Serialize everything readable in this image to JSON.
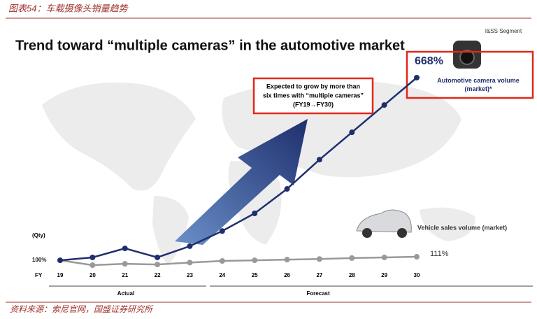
{
  "chart_data": {
    "type": "line",
    "header": "图表54：车载摄像头销量趋势",
    "title": "Trend toward “multiple cameras” in the automotive market",
    "segment_label": "I&SS Segment",
    "callout": [
      "Expected to grow by more than",
      "six times with “multiple cameras”",
      "(FY19→FY30)"
    ],
    "y_label": "(Qty)",
    "x_label": "FY",
    "periods": [
      "Actual",
      "Forecast"
    ],
    "source": "资料来源：索尼官网，国盛证券研究所",
    "categories": [
      "19",
      "20",
      "21",
      "22",
      "23",
      "24",
      "25",
      "26",
      "27",
      "28",
      "29",
      "30"
    ],
    "series": [
      {
        "name": "Automotive camera volume (market)*",
        "color": "#1f2f6e",
        "values": [
          100,
          109,
          137,
          109,
          144,
          191,
          246,
          322,
          413,
          498,
          583,
          668
        ],
        "value_labels": [
          "100%",
          null,
          null,
          null,
          null,
          null,
          null,
          null,
          null,
          null,
          null,
          "668%"
        ]
      },
      {
        "name": "Vehicle sales volume (market)",
        "color": "#999999",
        "values": [
          100,
          85,
          89,
          87,
          93,
          98,
          100,
          102,
          104,
          107,
          109,
          111
        ],
        "value_labels": [
          null,
          null,
          null,
          null,
          null,
          null,
          null,
          null,
          null,
          null,
          null,
          "111%"
        ]
      }
    ]
  }
}
